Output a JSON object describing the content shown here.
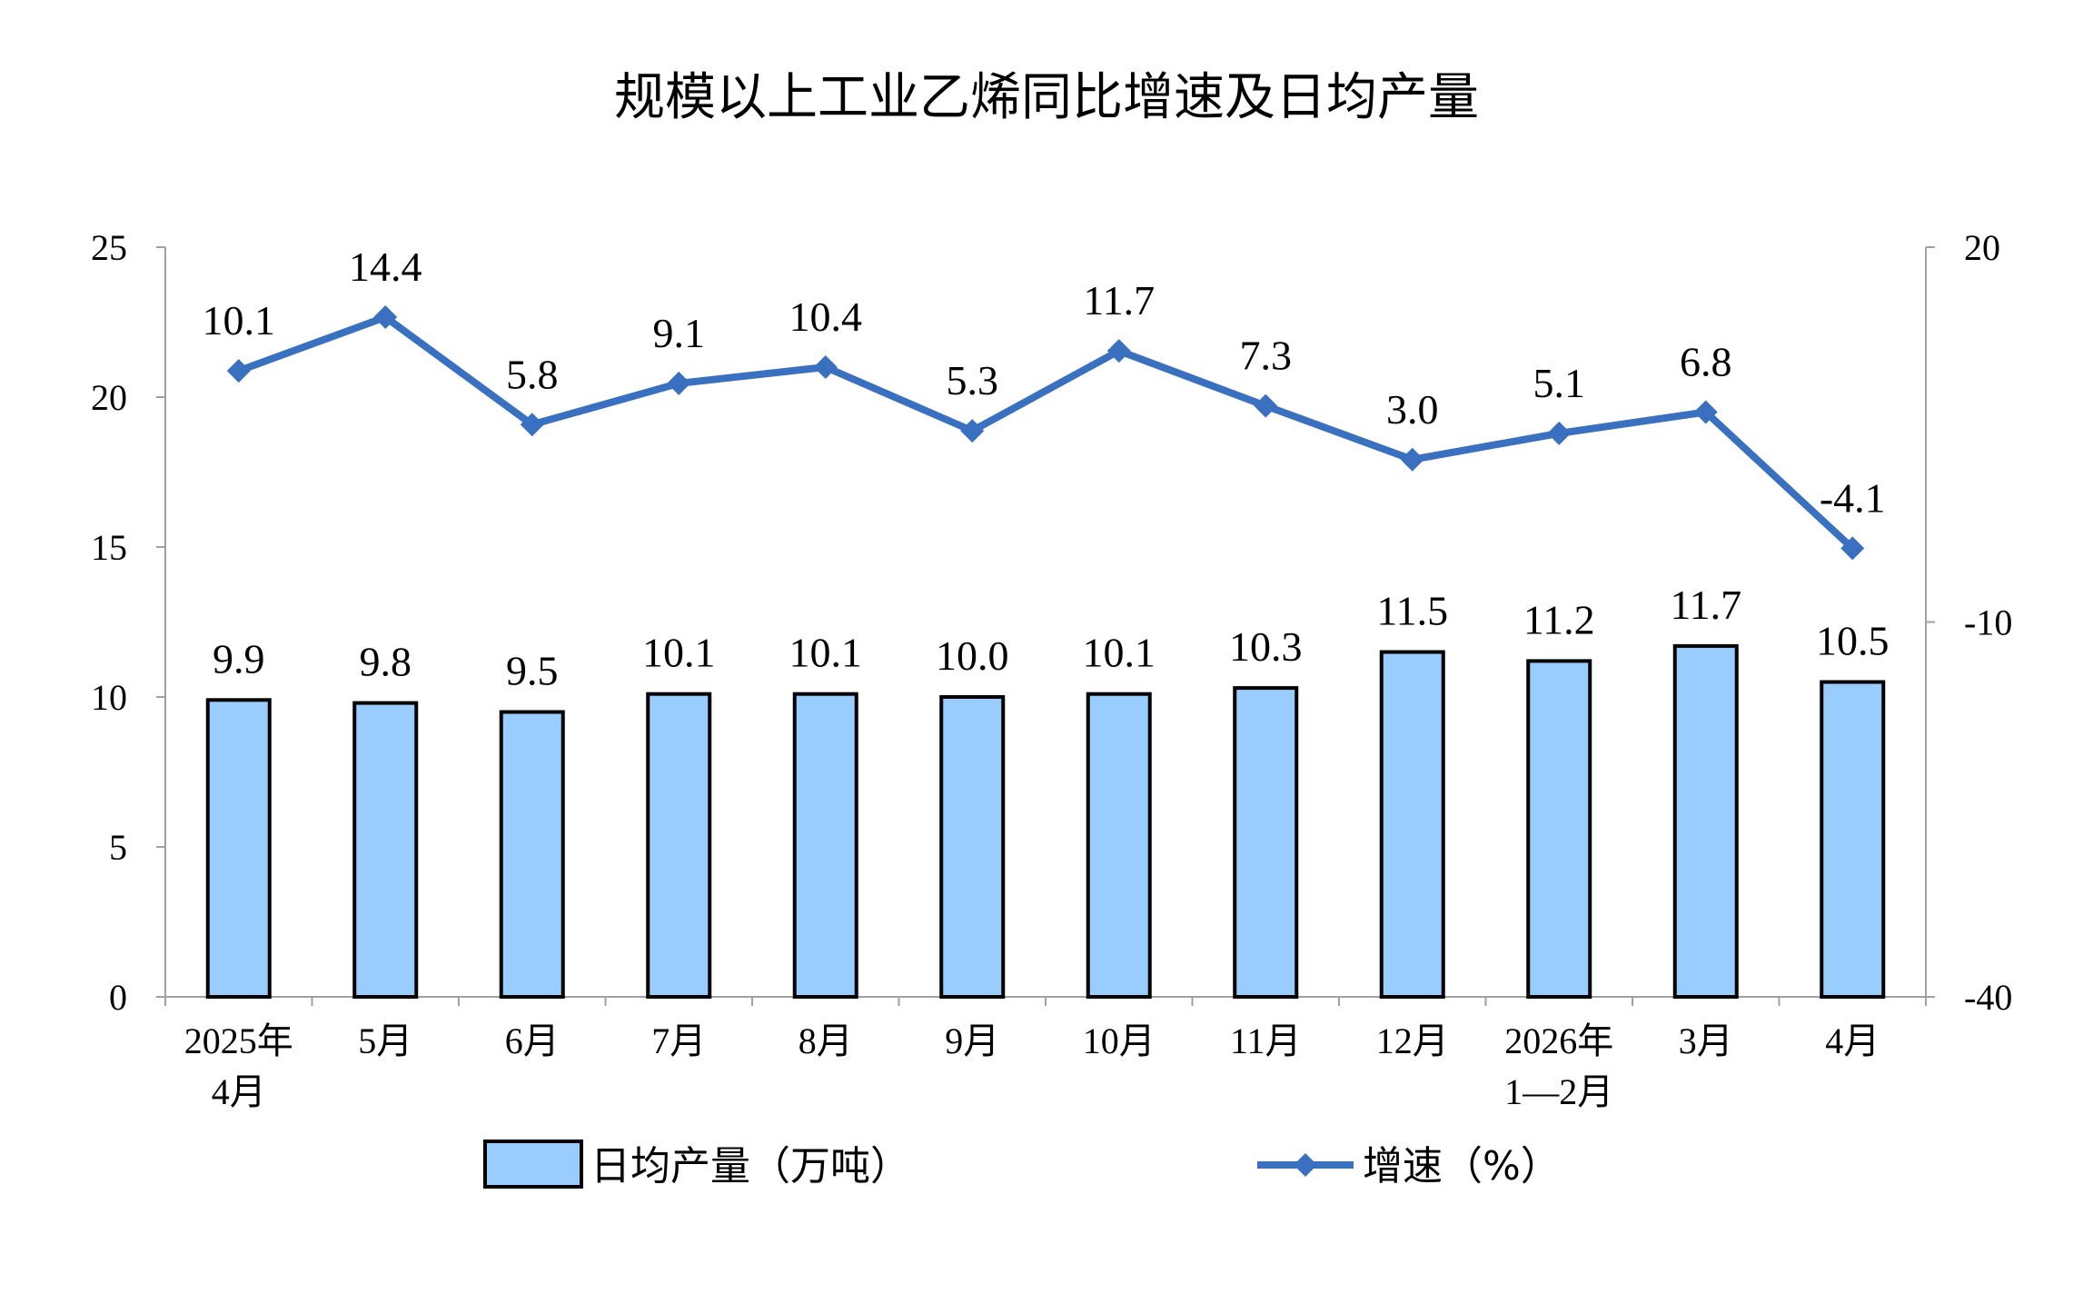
{
  "chart_data": {
    "type": "bar",
    "title": "规模以上工业乙烯同比增速及日均产量",
    "categories": [
      [
        "2025年",
        "4月"
      ],
      [
        "5月"
      ],
      [
        "6月"
      ],
      [
        "7月"
      ],
      [
        "8月"
      ],
      [
        "9月"
      ],
      [
        "10月"
      ],
      [
        "11月"
      ],
      [
        "12月"
      ],
      [
        "2026年",
        "1—2月"
      ],
      [
        "3月"
      ],
      [
        "4月"
      ]
    ],
    "y_left": {
      "min": 0,
      "max": 25,
      "ticks": [
        "0",
        "5",
        "10",
        "15",
        "20",
        "25"
      ]
    },
    "y_right": {
      "min": -40,
      "max": 20,
      "ticks": [
        "-40",
        "-10",
        "20"
      ]
    },
    "series": [
      {
        "name": "日均产量（万吨）",
        "type": "bar",
        "axis": "left",
        "color": "#99ccff",
        "values": [
          9.9,
          9.8,
          9.5,
          10.1,
          10.1,
          10.0,
          10.1,
          10.3,
          11.5,
          11.2,
          11.7,
          10.5
        ],
        "labels": [
          "9.9",
          "9.8",
          "9.5",
          "10.1",
          "10.1",
          "10.0",
          "10.1",
          "10.3",
          "11.5",
          "11.2",
          "11.7",
          "10.5"
        ]
      },
      {
        "name": "增速（%）",
        "type": "line",
        "axis": "right",
        "color": "#3a70c0",
        "marker": "diamond",
        "values": [
          10.1,
          14.4,
          5.8,
          9.1,
          10.4,
          5.3,
          11.7,
          7.3,
          3.0,
          5.1,
          6.8,
          -4.1
        ],
        "labels": [
          "10.1",
          "14.4",
          "5.8",
          "9.1",
          "10.4",
          "5.3",
          "11.7",
          "7.3",
          "3.0",
          "5.1",
          "6.8",
          "-4.1"
        ]
      }
    ],
    "legend_position": "bottom",
    "grid": false
  }
}
